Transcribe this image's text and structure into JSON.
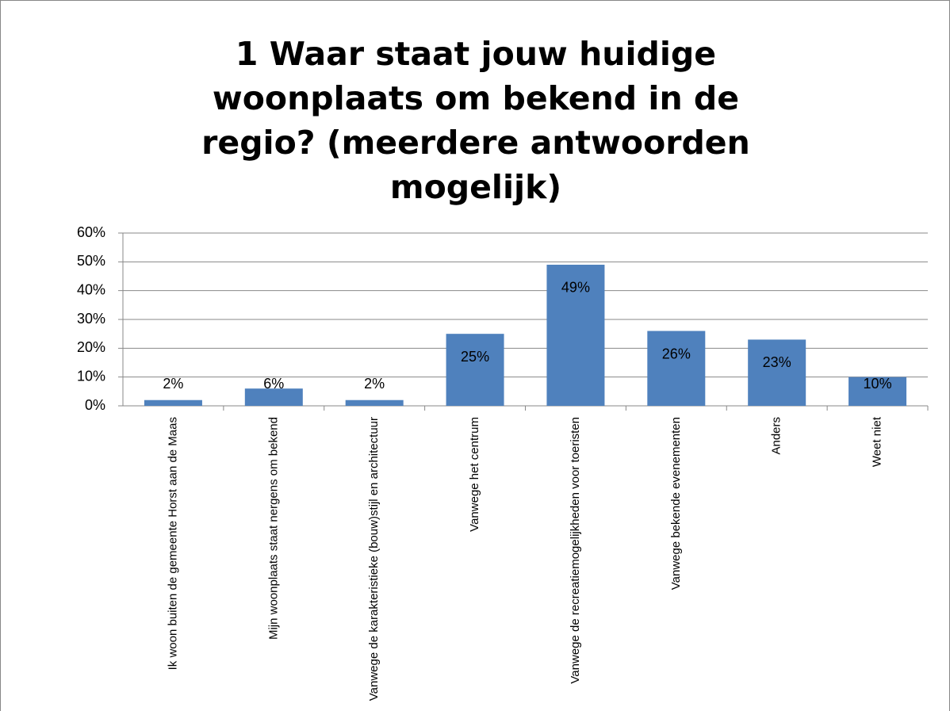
{
  "chart_data": {
    "type": "bar",
    "title": "1 Waar staat jouw huidige woonplaats om bekend in de regio? (meerdere antwoorden mogelijk)",
    "categories": [
      "Ik woon buiten de gemeente Horst aan de Maas",
      "Mijn woonplaats staat nergens om bekend",
      "Vanwege de karakteristieke (bouw)stijl en architectuur",
      "Vanwege het centrum",
      "Vanwege de recreatiemogelijkheden voor toeristen",
      "Vanwege bekende evenementen",
      "Anders",
      "Weet niet"
    ],
    "values": [
      2,
      6,
      2,
      25,
      49,
      26,
      23,
      10
    ],
    "value_labels": [
      "2%",
      "6%",
      "2%",
      "25%",
      "49%",
      "26%",
      "23%",
      "10%"
    ],
    "color": "#4f81bd",
    "ylim": [
      0,
      60
    ],
    "yticks": [
      {
        "value": 0,
        "label": "0%"
      },
      {
        "value": 10,
        "label": "10%"
      },
      {
        "value": 20,
        "label": "20%"
      },
      {
        "value": 30,
        "label": "30%"
      },
      {
        "value": 40,
        "label": "40%"
      },
      {
        "value": 50,
        "label": "50%"
      },
      {
        "value": 60,
        "label": "60%"
      }
    ],
    "grid": true
  }
}
